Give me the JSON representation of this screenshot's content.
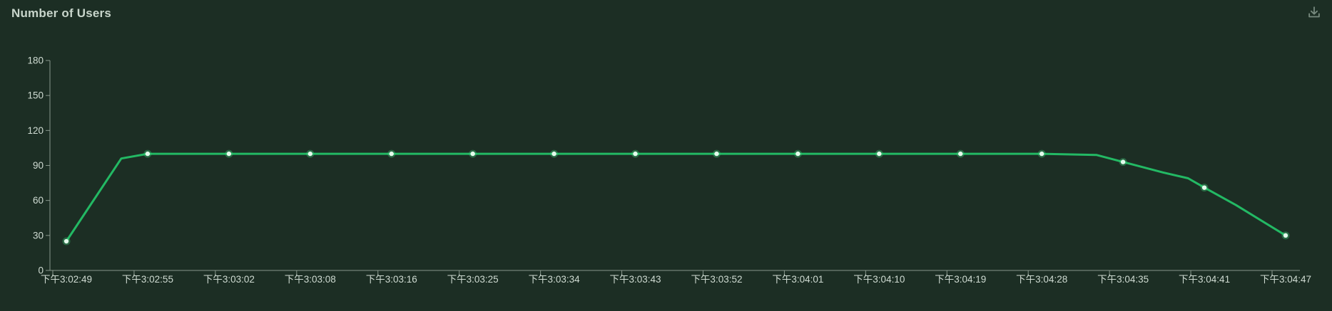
{
  "header": {
    "title": "Number of Users"
  },
  "toolbar": {
    "download_icon": "download-icon"
  },
  "colors": {
    "background": "#1c2e24",
    "title_text": "#c8d5cb",
    "axis_line": "#9aa99e",
    "axis_text": "#cfdbd2",
    "series_line": "#23b964",
    "dot_fill": "#e4fbec",
    "dot_halo": "#42d682",
    "icon": "#76897d"
  },
  "chart_data": {
    "type": "line",
    "title": "Number of Users",
    "xlabel": "",
    "ylabel": "",
    "grid": false,
    "legend": "none",
    "ylim": [
      0,
      180
    ],
    "y_ticks": [
      0,
      30,
      60,
      90,
      120,
      150,
      180
    ],
    "categories": [
      "下午3:02:49",
      "下午3:02:55",
      "下午3:03:02",
      "下午3:03:08",
      "下午3:03:16",
      "下午3:03:25",
      "下午3:03:34",
      "下午3:03:43",
      "下午3:03:52",
      "下午3:04:01",
      "下午3:04:10",
      "下午3:04:19",
      "下午3:04:28",
      "下午3:04:35",
      "下午3:04:41",
      "下午3:04:47"
    ],
    "series": [
      {
        "name": "Number of Users",
        "values": [
          25,
          100,
          100,
          100,
          100,
          100,
          100,
          100,
          100,
          100,
          100,
          100,
          100,
          93,
          71,
          30
        ]
      }
    ],
    "intermediate_points": [
      {
        "after_index": 0,
        "frac": 0.676,
        "value": 96
      },
      {
        "after_index": 12,
        "frac": 0.676,
        "value": 99
      },
      {
        "after_index": 13,
        "frac": 0.49,
        "value": 84
      },
      {
        "after_index": 13,
        "frac": 0.8,
        "value": 79
      },
      {
        "after_index": 14,
        "frac": 0.39,
        "value": 56
      }
    ]
  }
}
